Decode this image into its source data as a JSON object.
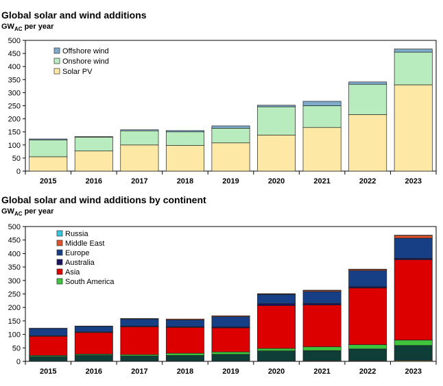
{
  "chart_data": [
    {
      "type": "bar",
      "stacked": true,
      "title": "Global solar and wind additions",
      "ylabel": "GW",
      "ylabel_sub": "AC",
      "ylabel_suffix": " per year",
      "ylim": [
        0,
        500
      ],
      "yticks": [
        0,
        50,
        100,
        150,
        200,
        250,
        300,
        350,
        400,
        450,
        500
      ],
      "categories": [
        "2015",
        "2016",
        "2017",
        "2018",
        "2019",
        "2020",
        "2021",
        "2022",
        "2023"
      ],
      "legend_position": "top-left",
      "series": [
        {
          "name": "Solar PV",
          "color": "#fde8a6",
          "values": [
            55,
            77,
            100,
            98,
            108,
            138,
            167,
            216,
            330
          ]
        },
        {
          "name": "Onshore wind",
          "color": "#b8ecbe",
          "values": [
            64,
            53,
            54,
            52,
            56,
            108,
            83,
            116,
            125
          ]
        },
        {
          "name": "Offshore wind",
          "color": "#7eaacb",
          "values": [
            4,
            2,
            4,
            5,
            9,
            6,
            17,
            9,
            12
          ]
        }
      ]
    },
    {
      "type": "bar",
      "stacked": true,
      "title": "Global solar and wind additions by continent",
      "ylabel": "GW",
      "ylabel_sub": "AC",
      "ylabel_suffix": " per year",
      "ylim": [
        0,
        500
      ],
      "yticks": [
        0,
        50,
        100,
        150,
        200,
        250,
        300,
        350,
        400,
        450,
        500
      ],
      "categories": [
        "2015",
        "2016",
        "2017",
        "2018",
        "2019",
        "2020",
        "2021",
        "2022",
        "2023"
      ],
      "legend_position": "top-left",
      "series": [
        {
          "name": "",
          "color": "#f3bf5a",
          "values": [
            1,
            1,
            1,
            1,
            1,
            1,
            2,
            2,
            3
          ]
        },
        {
          "name": "",
          "color": "#0f3d38",
          "values": [
            17,
            22,
            19,
            21,
            25,
            38,
            38,
            44,
            56
          ]
        },
        {
          "name": "South America",
          "color": "#3fc43d",
          "values": [
            4,
            4,
            5,
            8,
            9,
            9,
            14,
            16,
            20
          ]
        },
        {
          "name": "Asia",
          "color": "#dd0000",
          "values": [
            71,
            80,
            103,
            96,
            89,
            159,
            155,
            210,
            298
          ]
        },
        {
          "name": "Australia",
          "color": "#1b1460",
          "values": [
            2,
            2,
            3,
            3,
            4,
            7,
            6,
            5,
            5
          ]
        },
        {
          "name": "Europe",
          "color": "#173f86",
          "values": [
            27,
            21,
            26,
            25,
            38,
            34,
            44,
            60,
            75
          ]
        },
        {
          "name": "Middle East",
          "color": "#e0522a",
          "values": [
            1,
            1,
            2,
            3,
            3,
            2,
            4,
            4,
            10
          ]
        },
        {
          "name": "Russia",
          "color": "#38c6de",
          "values": [
            0,
            0,
            0,
            0,
            0,
            1,
            1,
            1,
            1
          ]
        }
      ]
    }
  ]
}
